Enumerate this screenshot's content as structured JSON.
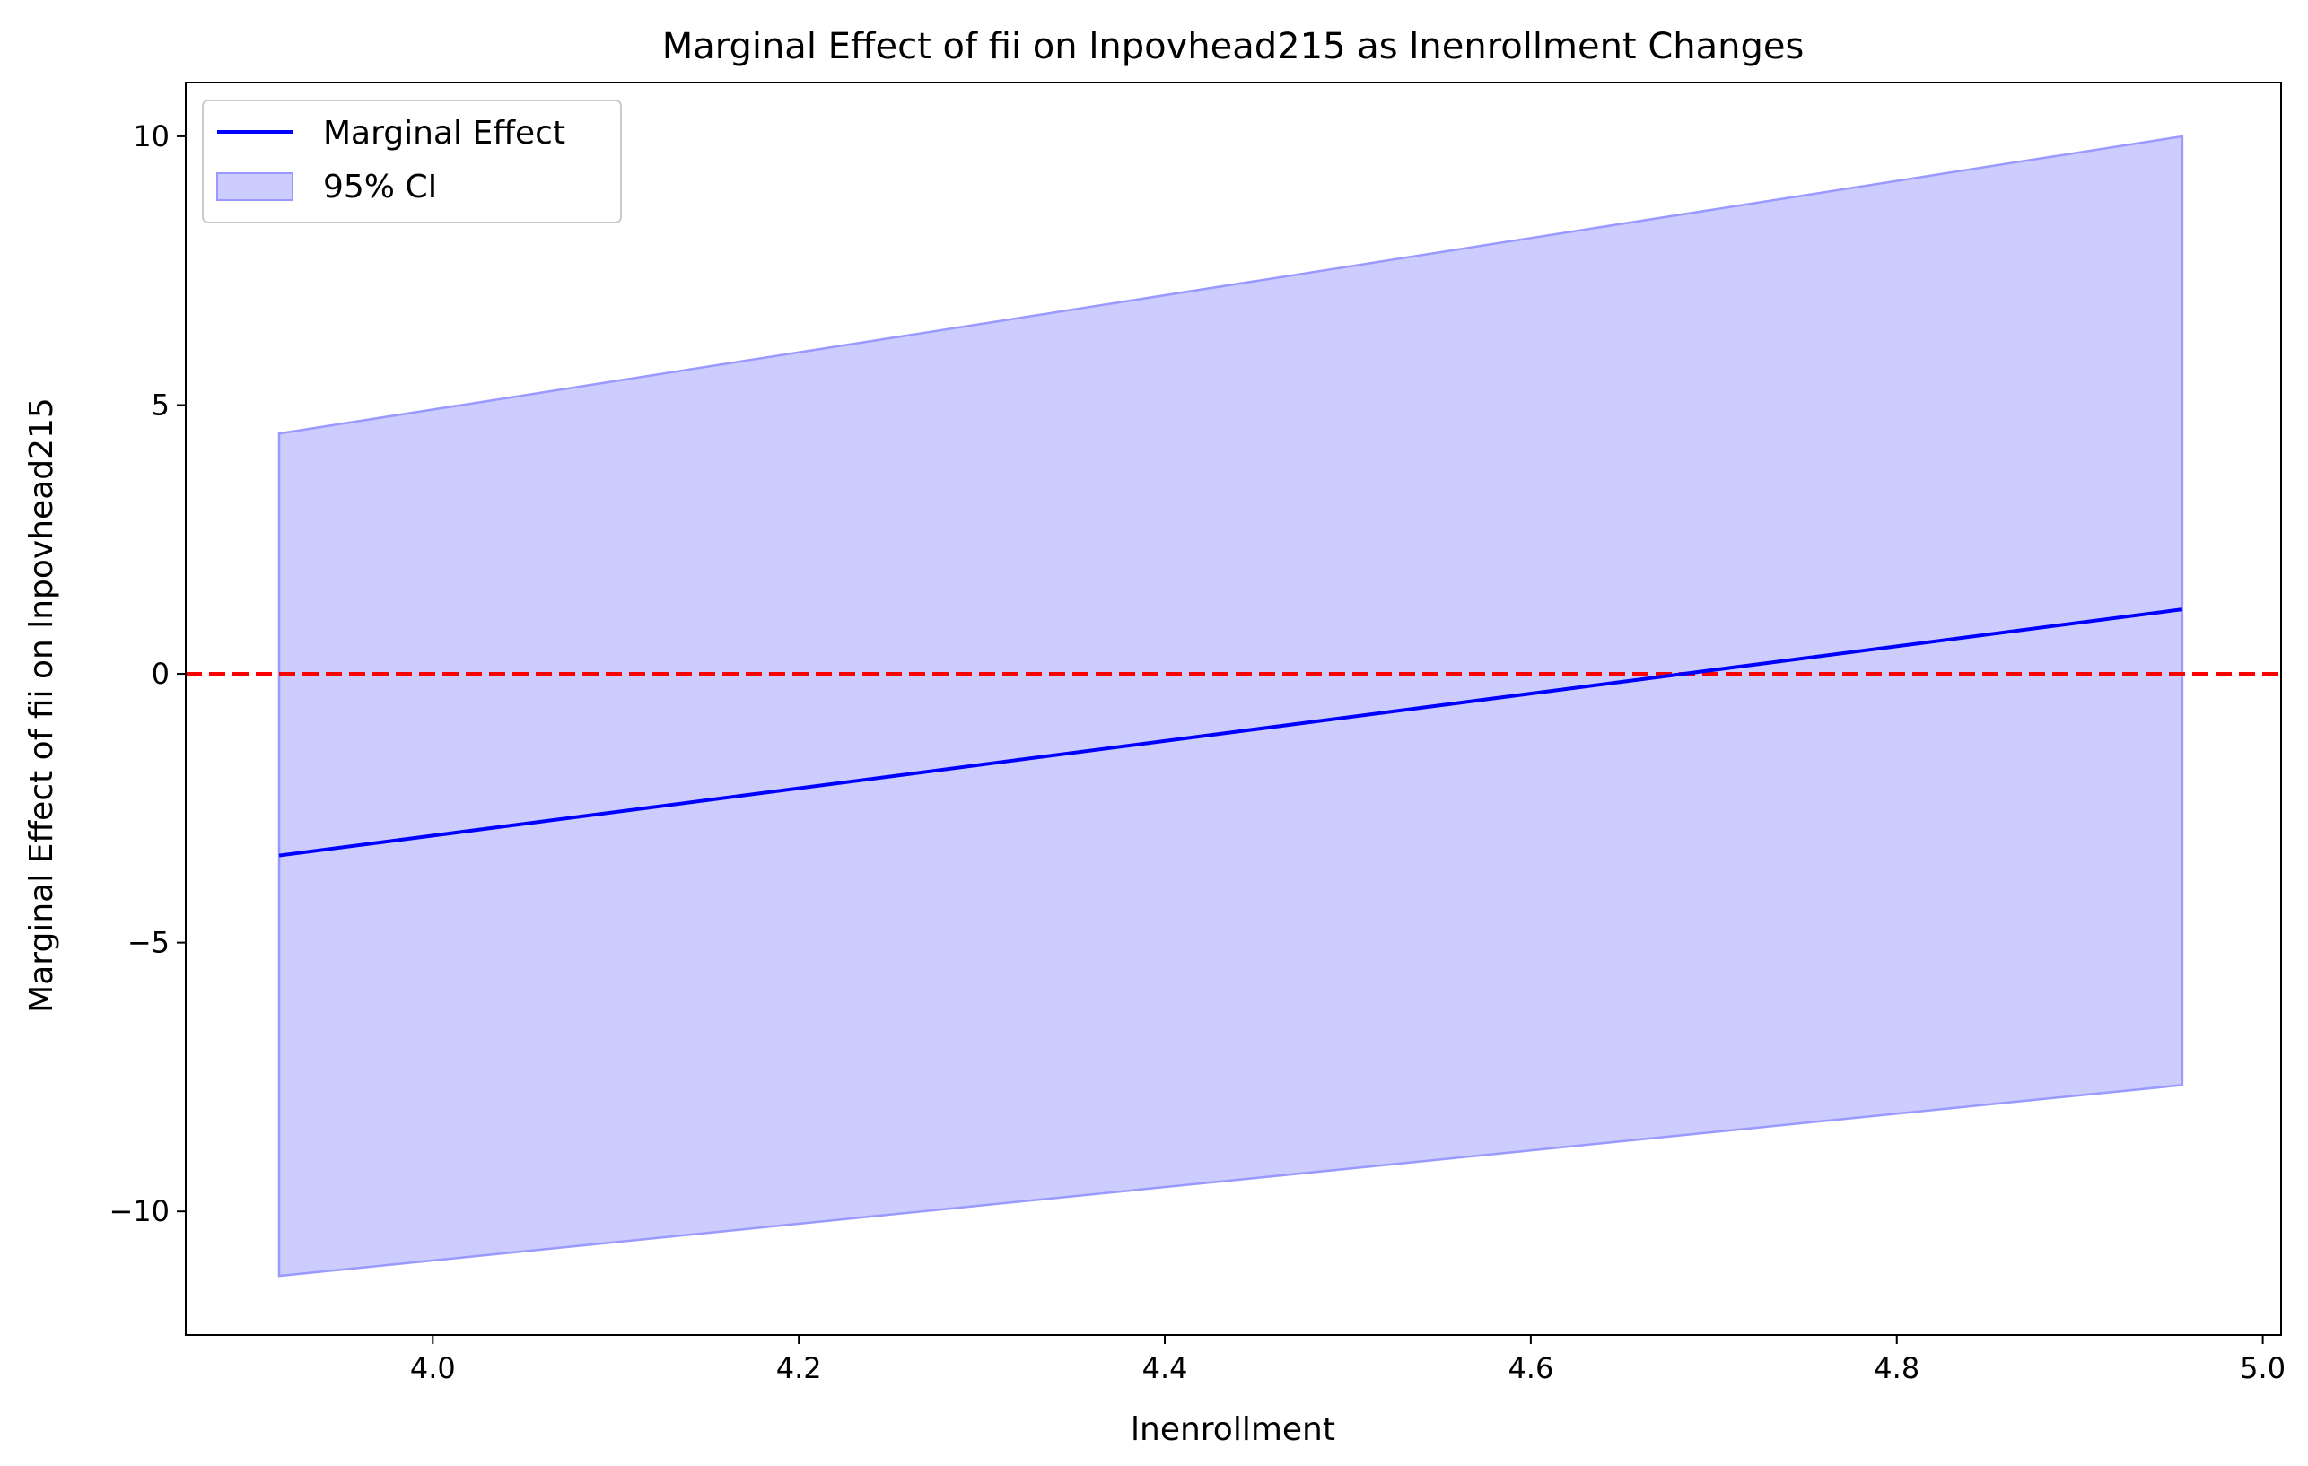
{
  "chart_data": {
    "type": "line",
    "title": "Marginal Effect of fii on lnpovhead215 as lnenrollment Changes",
    "xlabel": "lnenrollment",
    "ylabel": "Marginal Effect of fii on lnpovhead215",
    "xlim": [
      3.865,
      5.01
    ],
    "ylim": [
      -12.3,
      11.0
    ],
    "xticks": [
      4.0,
      4.2,
      4.4,
      4.6,
      4.8,
      5.0
    ],
    "xtick_labels": [
      "4.0",
      "4.2",
      "4.4",
      "4.6",
      "4.8",
      "5.0"
    ],
    "yticks": [
      -10,
      -5,
      0,
      5,
      10
    ],
    "ytick_labels": [
      "−10",
      "−5",
      "0",
      "5",
      "10"
    ],
    "legend_position": "top-left",
    "series": [
      {
        "name": "Marginal Effect",
        "kind": "line",
        "color": "#0000ff",
        "x": [
          3.916,
          4.956
        ],
        "y": [
          -3.38,
          1.2
        ]
      },
      {
        "name": "95% CI",
        "kind": "band",
        "color": "#ccccff",
        "edge_color": "#9999ff",
        "x": [
          3.916,
          4.956
        ],
        "upper": [
          4.47,
          10.0
        ],
        "lower": [
          -11.2,
          -7.65
        ]
      }
    ],
    "reference_line": {
      "y": 0,
      "color": "#ff0000",
      "style": "dashed"
    }
  }
}
